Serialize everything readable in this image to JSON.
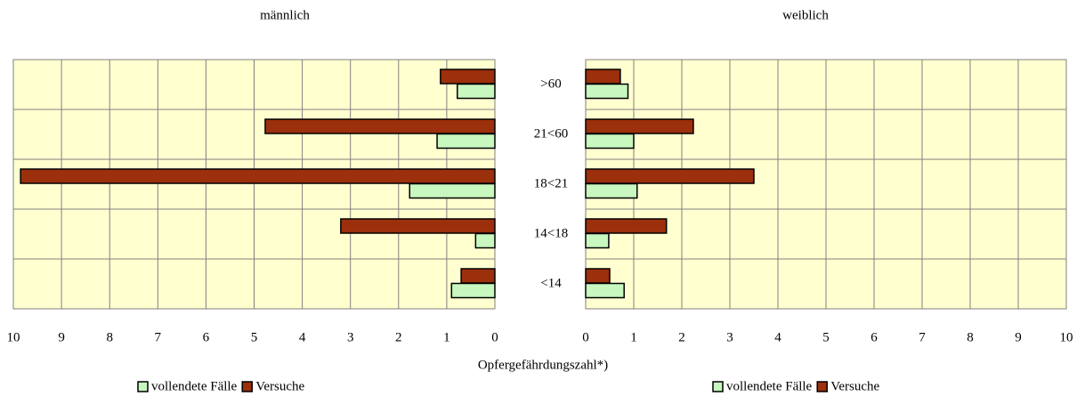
{
  "chart_data": [
    {
      "type": "bar",
      "title": "männlich",
      "categories": [
        null,
        null,
        null,
        null,
        null
      ],
      "series": [
        {
          "name": "vollendete Fälle",
          "color": "#c8f7c0",
          "values": [
            0.78,
            1.2,
            1.77,
            0.4,
            0.9
          ]
        },
        {
          "name": "Versuche",
          "color": "#9c2f0c",
          "values": [
            1.13,
            4.77,
            9.85,
            3.2,
            0.7
          ]
        }
      ],
      "xlim": [
        10,
        0
      ],
      "xticks": [
        10,
        9,
        8,
        7,
        6,
        5,
        4,
        3,
        2,
        1,
        0
      ],
      "grid": true,
      "legend": "bottom"
    },
    {
      "type": "bar",
      "title": "weiblich",
      "categories": [
        ">60",
        "21<60",
        "18<21",
        "14<18",
        "<14"
      ],
      "series": [
        {
          "name": "vollendete Fälle",
          "color": "#c8f7c0",
          "values": [
            0.88,
            1.0,
            1.07,
            0.48,
            0.8
          ]
        },
        {
          "name": "Versuche",
          "color": "#9c2f0c",
          "values": [
            0.72,
            2.24,
            3.5,
            1.68,
            0.5
          ]
        }
      ],
      "xlim": [
        0,
        10
      ],
      "xticks": [
        0,
        1,
        2,
        3,
        4,
        5,
        6,
        7,
        8,
        9,
        10
      ],
      "grid": true,
      "legend": "bottom"
    }
  ],
  "xlabel": "Opfergefährdungszahl*)"
}
